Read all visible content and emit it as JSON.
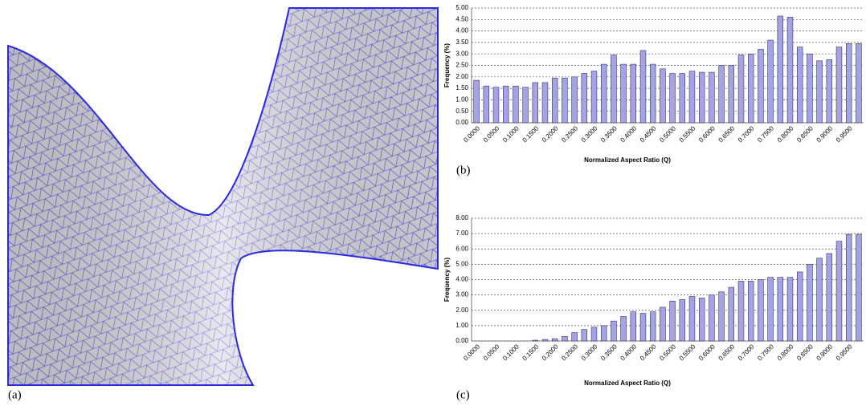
{
  "panel_a_label": "(a)",
  "chart_data": [
    {
      "type": "bar",
      "label": "(b)",
      "x_label": "Normalized Aspect Ratio (Q)",
      "y_label": "Frequency (%)",
      "categories": [
        "0.0000",
        null,
        "0.0500",
        null,
        "0.1000",
        null,
        "0.1500",
        null,
        "0.2000",
        null,
        "0.2500",
        null,
        "0.3000",
        null,
        "0.3500",
        null,
        "0.4000",
        null,
        "0.4500",
        null,
        "0.5000",
        null,
        "0.5500",
        null,
        "0.6000",
        null,
        "0.6500",
        null,
        "0.7000",
        null,
        "0.7500",
        null,
        "0.8000",
        null,
        "0.8500",
        null,
        "0.9000",
        null,
        "0.9500",
        null
      ],
      "values": [
        1.85,
        1.6,
        1.55,
        1.6,
        1.6,
        1.55,
        1.75,
        1.75,
        1.95,
        1.95,
        2.0,
        2.15,
        2.25,
        2.55,
        2.95,
        2.55,
        2.55,
        3.15,
        2.55,
        2.35,
        2.15,
        2.15,
        2.25,
        2.2,
        2.2,
        2.5,
        2.5,
        2.95,
        3.0,
        3.2,
        3.6,
        4.65,
        4.6,
        3.3,
        3.0,
        2.7,
        2.75,
        3.3,
        3.45,
        3.45
      ],
      "color": "#a3a3e6",
      "ylim": [
        0,
        5
      ],
      "yticks": [
        {
          "value": 0,
          "label": "0.00"
        },
        {
          "value": 0.5,
          "label": "0.50"
        },
        {
          "value": 1,
          "label": "1.00"
        },
        {
          "value": 1.5,
          "label": "1.50"
        },
        {
          "value": 2,
          "label": "2.00"
        },
        {
          "value": 2.5,
          "label": "2.50"
        },
        {
          "value": 3,
          "label": "3.00"
        },
        {
          "value": 3.5,
          "label": "3.50"
        },
        {
          "value": 4,
          "label": "4.00"
        },
        {
          "value": 4.5,
          "label": "4.50"
        },
        {
          "value": 5,
          "label": "5.00"
        }
      ],
      "grid": true
    },
    {
      "type": "bar",
      "label": "(c)",
      "x_label": "Normalized Aspect Ratio (Q)",
      "y_label": "Frequency (%)",
      "categories": [
        "0.0000",
        null,
        "0.0500",
        null,
        "0.1000",
        null,
        "0.1500",
        null,
        "0.2000",
        null,
        "0.2500",
        null,
        "0.3000",
        null,
        "0.3500",
        null,
        "0.4000",
        null,
        "0.4500",
        null,
        "0.5000",
        null,
        "0.5500",
        null,
        "0.6000",
        null,
        "0.6500",
        null,
        "0.7000",
        null,
        "0.7500",
        null,
        "0.8000",
        null,
        "0.8500",
        null,
        "0.9000",
        null,
        "0.9500",
        null
      ],
      "values": [
        0,
        0,
        0,
        0,
        0,
        0,
        0.05,
        0.1,
        0.15,
        0.3,
        0.55,
        0.75,
        0.9,
        1.0,
        1.3,
        1.6,
        1.9,
        1.8,
        1.9,
        2.2,
        2.6,
        2.7,
        2.9,
        2.8,
        3.0,
        3.2,
        3.5,
        3.9,
        3.9,
        4.0,
        4.15,
        4.15,
        4.15,
        4.5,
        5.0,
        5.4,
        5.7,
        6.5,
        6.95,
        6.95
      ],
      "color": "#a3a3e6",
      "ylim": [
        0,
        8
      ],
      "yticks": [
        {
          "value": 0,
          "label": "0.00"
        },
        {
          "value": 1,
          "label": "1.00"
        },
        {
          "value": 2,
          "label": "2.00"
        },
        {
          "value": 3,
          "label": "3.00"
        },
        {
          "value": 4,
          "label": "4.00"
        },
        {
          "value": 5,
          "label": "5.00"
        },
        {
          "value": 6,
          "label": "6.00"
        },
        {
          "value": 7,
          "label": "7.00"
        },
        {
          "value": 8,
          "label": "8.00"
        }
      ],
      "grid": true
    }
  ]
}
